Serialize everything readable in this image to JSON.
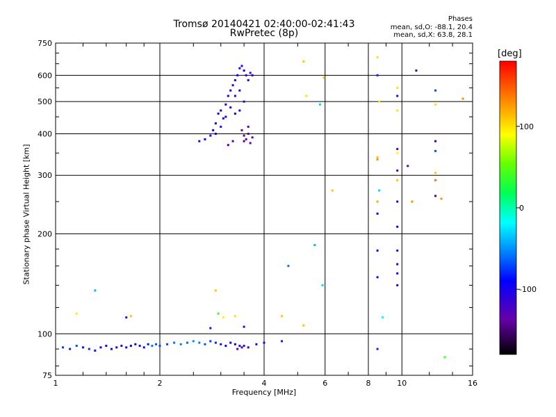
{
  "chart_data": {
    "type": "scatter",
    "title": "Tromsø 20140421 02:40:00-02:41:43",
    "subtitle": "RwPretec (8p)",
    "xlabel": "Frequency [MHz]",
    "ylabel": "Stationary phase Virtual Height [km]",
    "x_scale": "log",
    "y_scale": "log",
    "xlim": [
      1,
      16
    ],
    "ylim": [
      75,
      750
    ],
    "x_ticks": [
      1,
      2,
      4,
      6,
      8,
      10,
      16
    ],
    "x_tick_labels": [
      "1",
      "2",
      "4",
      "6",
      "8",
      "10",
      "16"
    ],
    "y_ticks": [
      75,
      100,
      200,
      300,
      400,
      500,
      600,
      750
    ],
    "y_tick_labels": [
      "75",
      "100",
      "200",
      "300",
      "400",
      "500",
      "600",
      "750"
    ],
    "grid": true,
    "colorbar": {
      "label": "[deg]",
      "range": [
        -180,
        180
      ],
      "tick_values": [
        100,
        0,
        -100
      ],
      "tick_labels": [
        "100",
        "0",
        "-100"
      ]
    },
    "legend_title": "Phases",
    "legend_lines": [
      "mean, sd,O: -88.1, 20.4",
      "mean, sd,X:  63.8, 28.1"
    ],
    "series": [
      {
        "points": [
          [
            1.05,
            91,
            -75
          ],
          [
            1.1,
            90,
            -80
          ],
          [
            1.15,
            92,
            -70
          ],
          [
            1.2,
            91,
            -85
          ],
          [
            1.25,
            90,
            -78
          ],
          [
            1.3,
            89,
            -82
          ],
          [
            1.35,
            91,
            -95
          ],
          [
            1.4,
            92,
            -110
          ],
          [
            1.45,
            90,
            -100
          ],
          [
            1.5,
            91,
            -105
          ],
          [
            1.55,
            92,
            -98
          ],
          [
            1.6,
            91,
            -102
          ],
          [
            1.65,
            92,
            -90
          ],
          [
            1.7,
            93,
            -95
          ],
          [
            1.75,
            92,
            -88
          ],
          [
            1.8,
            91,
            -92
          ],
          [
            1.85,
            93,
            -85
          ],
          [
            1.9,
            92,
            -60
          ],
          [
            1.95,
            93,
            -65
          ],
          [
            2.0,
            92,
            -70
          ],
          [
            2.1,
            93,
            -72
          ],
          [
            2.2,
            94,
            -60
          ],
          [
            2.3,
            93,
            -55
          ],
          [
            2.4,
            94,
            -62
          ],
          [
            2.5,
            95,
            -50
          ],
          [
            2.6,
            94,
            -55
          ],
          [
            2.7,
            93,
            -68
          ],
          [
            2.8,
            95,
            -75
          ],
          [
            2.9,
            94,
            -80
          ],
          [
            3.0,
            93,
            -85
          ],
          [
            3.1,
            92,
            -90
          ],
          [
            3.2,
            94,
            -95
          ],
          [
            3.3,
            93,
            -98
          ],
          [
            3.4,
            92,
            -110
          ],
          [
            3.5,
            92,
            -120
          ],
          [
            3.6,
            91,
            -115
          ],
          [
            3.8,
            93,
            -100
          ],
          [
            4.0,
            94,
            -105
          ],
          [
            4.5,
            95,
            -80
          ],
          [
            3.35,
            90,
            -130
          ],
          [
            3.45,
            91,
            -125
          ]
        ]
      },
      {
        "points": [
          [
            2.6,
            380,
            -105
          ],
          [
            2.7,
            385,
            -98
          ],
          [
            2.8,
            395,
            -100
          ],
          [
            2.85,
            410,
            -95
          ],
          [
            2.9,
            430,
            -102
          ],
          [
            2.95,
            460,
            -110
          ],
          [
            3.0,
            470,
            -98
          ],
          [
            3.05,
            445,
            -105
          ],
          [
            3.1,
            490,
            -100
          ],
          [
            3.15,
            520,
            -95
          ],
          [
            3.2,
            540,
            -108
          ],
          [
            3.25,
            560,
            -112
          ],
          [
            3.3,
            580,
            -100
          ],
          [
            3.35,
            600,
            -96
          ],
          [
            3.4,
            630,
            -104
          ],
          [
            3.45,
            640,
            -110
          ],
          [
            3.5,
            620,
            -98
          ],
          [
            3.55,
            600,
            -106
          ],
          [
            3.6,
            580,
            -100
          ],
          [
            3.65,
            610,
            -115
          ],
          [
            3.7,
            600,
            -92
          ],
          [
            3.3,
            520,
            -102
          ],
          [
            3.4,
            540,
            -98
          ],
          [
            3.5,
            500,
            -106
          ],
          [
            3.2,
            480,
            -110
          ],
          [
            3.1,
            450,
            -96
          ],
          [
            3.0,
            420,
            -104
          ],
          [
            2.9,
            400,
            -100
          ],
          [
            3.3,
            460,
            -108
          ],
          [
            3.4,
            470,
            -102
          ],
          [
            3.45,
            410,
            -130
          ],
          [
            3.5,
            395,
            -140
          ],
          [
            3.55,
            385,
            -135
          ],
          [
            3.6,
            400,
            -128
          ],
          [
            3.65,
            375,
            -138
          ],
          [
            3.7,
            390,
            -132
          ],
          [
            3.6,
            420,
            -125
          ],
          [
            3.5,
            380,
            -145
          ],
          [
            3.25,
            380,
            -120
          ],
          [
            3.15,
            370,
            -126
          ]
        ]
      },
      {
        "points": [
          [
            1.3,
            135,
            -40
          ],
          [
            1.15,
            115,
            95
          ],
          [
            1.6,
            112,
            -110
          ],
          [
            1.65,
            113,
            110
          ],
          [
            2.9,
            135,
            110
          ],
          [
            2.95,
            115,
            40
          ],
          [
            3.05,
            112,
            95
          ],
          [
            2.8,
            104,
            -110
          ],
          [
            3.3,
            113,
            100
          ],
          [
            3.5,
            105,
            -110
          ],
          [
            4.5,
            113,
            110
          ],
          [
            4.7,
            160,
            -60
          ],
          [
            5.2,
            106,
            110
          ],
          [
            5.2,
            660,
            110
          ],
          [
            5.3,
            520,
            100
          ],
          [
            5.6,
            185,
            -40
          ],
          [
            5.8,
            490,
            -30
          ],
          [
            5.9,
            140,
            -30
          ],
          [
            5.95,
            590,
            110
          ],
          [
            6.3,
            270,
            110
          ],
          [
            8.5,
            680,
            100
          ],
          [
            8.5,
            600,
            -80
          ],
          [
            8.6,
            500,
            100
          ],
          [
            8.5,
            340,
            110
          ],
          [
            8.5,
            335,
            130
          ],
          [
            8.6,
            270,
            -30
          ],
          [
            8.5,
            250,
            120
          ],
          [
            8.5,
            230,
            -95
          ],
          [
            8.5,
            178,
            -110
          ],
          [
            8.5,
            148,
            -100
          ],
          [
            8.5,
            90,
            -80
          ],
          [
            8.8,
            112,
            -20
          ],
          [
            9.7,
            550,
            100
          ],
          [
            9.7,
            520,
            -110
          ],
          [
            9.7,
            470,
            100
          ],
          [
            9.7,
            360,
            -130
          ],
          [
            9.7,
            350,
            90
          ],
          [
            9.7,
            310,
            -120
          ],
          [
            9.7,
            290,
            110
          ],
          [
            9.7,
            250,
            -110
          ],
          [
            9.7,
            210,
            -90
          ],
          [
            9.7,
            178,
            -110
          ],
          [
            9.7,
            162,
            -105
          ],
          [
            9.7,
            152,
            -100
          ],
          [
            9.7,
            140,
            -110
          ],
          [
            10.4,
            320,
            -130
          ],
          [
            10.7,
            250,
            130
          ],
          [
            11.0,
            620,
            -120
          ],
          [
            12.5,
            540,
            -70
          ],
          [
            12.5,
            490,
            100
          ],
          [
            12.5,
            380,
            -100
          ],
          [
            12.5,
            355,
            -70
          ],
          [
            12.5,
            305,
            110
          ],
          [
            12.5,
            290,
            140
          ],
          [
            12.5,
            260,
            -110
          ],
          [
            13.0,
            255,
            130
          ],
          [
            13.3,
            85,
            40
          ],
          [
            15.0,
            510,
            130
          ]
        ]
      }
    ]
  }
}
